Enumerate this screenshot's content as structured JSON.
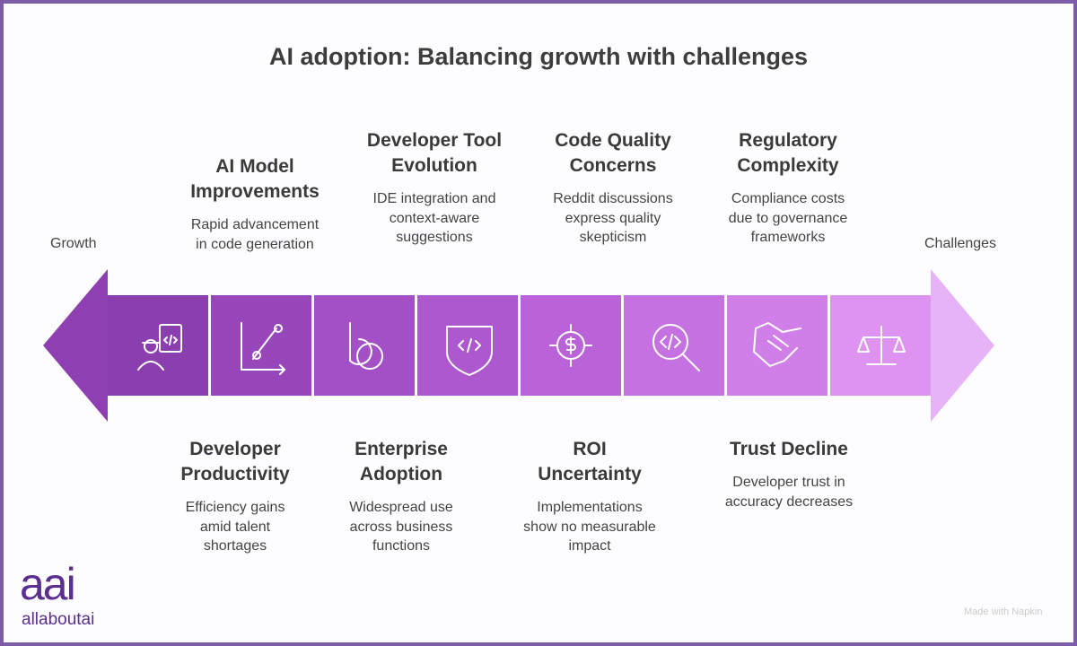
{
  "title": "AI adoption: Balancing growth with challenges",
  "left_label": "Growth",
  "right_label": "Challenges",
  "top_items": [
    {
      "title_lines": [
        "AI Model",
        "Improvements"
      ],
      "description_lines": [
        "Rapid advancement",
        "in code generation"
      ]
    },
    {
      "title_lines": [
        "Developer Tool",
        "Evolution"
      ],
      "description_lines": [
        "IDE integration and",
        "context-aware",
        "suggestions"
      ]
    },
    {
      "title_lines": [
        "Code Quality",
        "Concerns"
      ],
      "description_lines": [
        "Reddit discussions",
        "express quality",
        "skepticism"
      ]
    },
    {
      "title_lines": [
        "Regulatory",
        "Complexity"
      ],
      "description_lines": [
        "Compliance costs",
        "due to governance",
        "frameworks"
      ]
    }
  ],
  "bottom_items": [
    {
      "title_lines": [
        "Developer",
        "Productivity"
      ],
      "description_lines": [
        "Efficiency gains",
        "amid talent",
        "shortages"
      ]
    },
    {
      "title_lines": [
        "Enterprise",
        "Adoption"
      ],
      "description_lines": [
        "Widespread use",
        "across business",
        "functions"
      ]
    },
    {
      "title_lines": [
        "ROI",
        "Uncertainty"
      ],
      "description_lines": [
        "Implementations",
        "show no measurable",
        "impact"
      ]
    },
    {
      "title_lines": [
        "Trust Decline"
      ],
      "description_lines": [
        "Developer trust in",
        "accuracy decreases"
      ]
    }
  ],
  "logo": {
    "mark": "aai",
    "text": "allaboutai"
  },
  "watermark": "Made with Napkin"
}
